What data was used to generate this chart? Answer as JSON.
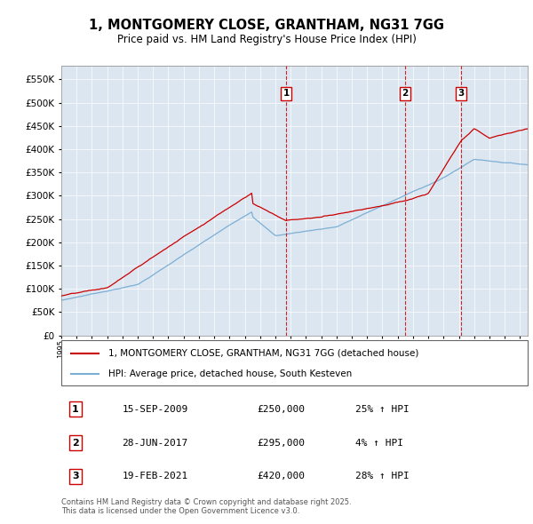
{
  "title": "1, MONTGOMERY CLOSE, GRANTHAM, NG31 7GG",
  "subtitle": "Price paid vs. HM Land Registry's House Price Index (HPI)",
  "legend_line1": "1, MONTGOMERY CLOSE, GRANTHAM, NG31 7GG (detached house)",
  "legend_line2": "HPI: Average price, detached house, South Kesteven",
  "footer": "Contains HM Land Registry data © Crown copyright and database right 2025.\nThis data is licensed under the Open Government Licence v3.0.",
  "sale_color": "#cc0000",
  "hpi_color": "#7bafd4",
  "background_color": "#dce6f1",
  "ylim": [
    0,
    580000
  ],
  "yticks": [
    0,
    50000,
    100000,
    150000,
    200000,
    250000,
    300000,
    350000,
    400000,
    450000,
    500000,
    550000
  ],
  "transactions": [
    {
      "num": 1,
      "date": "15-SEP-2009",
      "price": 250000,
      "pct": "25%",
      "dir": "↑",
      "x": 2009.71
    },
    {
      "num": 2,
      "date": "28-JUN-2017",
      "price": 295000,
      "pct": "4%",
      "dir": "↑",
      "x": 2017.49
    },
    {
      "num": 3,
      "date": "19-FEB-2021",
      "price": 420000,
      "pct": "28%",
      "dir": "↑",
      "x": 2021.13
    }
  ]
}
